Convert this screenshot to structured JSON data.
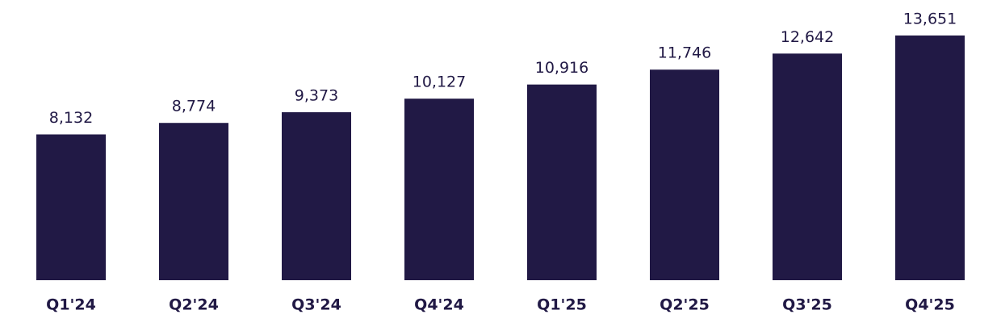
{
  "chart_data": {
    "type": "bar",
    "categories": [
      "Q1'24",
      "Q2'24",
      "Q3'24",
      "Q4'24",
      "Q1'25",
      "Q2'25",
      "Q3'25",
      "Q4'25"
    ],
    "values": [
      8132,
      8774,
      9373,
      10127,
      10916,
      11746,
      12642,
      13651
    ],
    "value_labels": [
      "8,132",
      "8,774",
      "9,373",
      "10,127",
      "10,916",
      "11,746",
      "12,642",
      "13,651"
    ],
    "color": "#211945"
  }
}
